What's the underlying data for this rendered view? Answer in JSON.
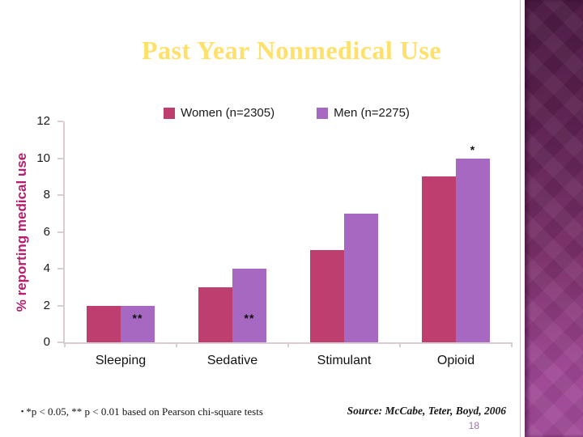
{
  "slide": {
    "title": "Past Year Nonmedical Use",
    "footnote_bullet": "▪",
    "footnote": "*p < 0.05, ** p < 0.01 based on Pearson chi-square tests",
    "source": "Source: McCabe, Teter, Boyd, 2006",
    "page_number": "18"
  },
  "chart_data": {
    "type": "bar",
    "title": "",
    "categories": [
      "Sleeping",
      "Sedative",
      "Stimulant",
      "Opioid"
    ],
    "series": [
      {
        "name": "Women (n=2305)",
        "values": [
          2,
          3,
          5,
          9
        ],
        "color": "#BE3E6F"
      },
      {
        "name": "Men (n=2275)",
        "values": [
          2,
          4,
          7,
          10
        ],
        "color": "#A668C1"
      }
    ],
    "xlabel": "",
    "ylabel": "% reporting medical use",
    "ylim": [
      0,
      12
    ],
    "yticks": [
      0,
      2,
      4,
      6,
      8,
      10,
      12
    ],
    "grid": false,
    "legend_position": "top",
    "annotations": [
      {
        "text": "**",
        "category": "Sleeping",
        "series": "Men (n=2275)",
        "y_value": 1.3
      },
      {
        "text": "**",
        "category": "Sedative",
        "series": "Men (n=2275)",
        "y_value": 1.3
      },
      {
        "text": "*",
        "category": "Opioid",
        "series": "Men (n=2275)",
        "y_value": 10.45
      }
    ]
  },
  "colors": {
    "title": "#FFE06A",
    "ylabel": "#B61E6E",
    "axis": "#D9CCD2",
    "women_bar": "#BE3E6F",
    "men_bar": "#A668C1",
    "page_number": "#9879A6",
    "sidebar_top": "#4C1A44",
    "sidebar_bottom": "#A14B98"
  }
}
